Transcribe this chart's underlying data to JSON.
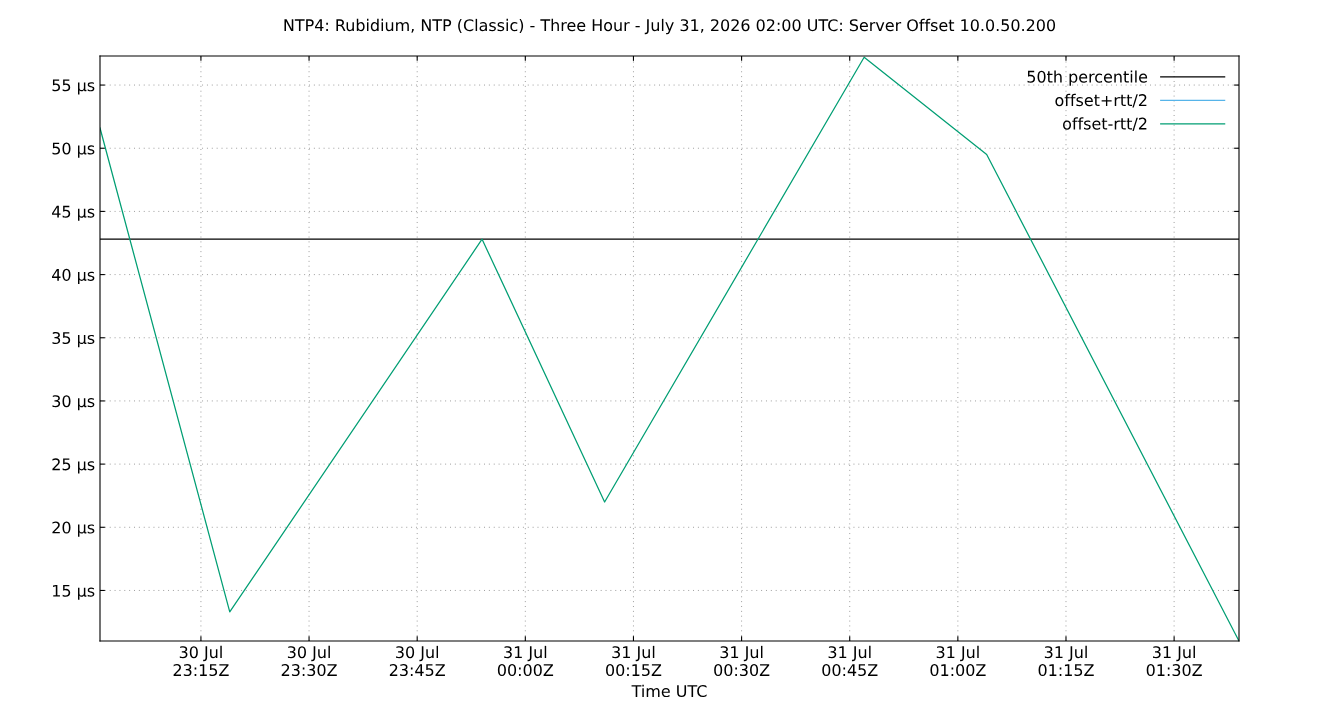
{
  "chart_data": {
    "type": "line",
    "title": "NTP4: Rubidium, NTP (Classic) - Three Hour - July 31, 2026 02:00 UTC: Server Offset 10.0.50.200",
    "xlabel": "Time UTC",
    "x": [
      "2026-07-30T23:01",
      "2026-07-30T23:19",
      "2026-07-30T23:54",
      "2026-07-31T00:11",
      "2026-07-31T00:47",
      "2026-07-31T01:04",
      "2026-07-31T01:39"
    ],
    "series": [
      {
        "name": "50th percentile",
        "color": "#000000",
        "x": [
          "2026-07-30T23:01",
          "2026-07-31T01:39"
        ],
        "values": [
          42.8,
          42.8
        ]
      },
      {
        "name": "offset+rtt/2",
        "color": "#56b4e9",
        "values": [
          null,
          null,
          null,
          null,
          null,
          null,
          null
        ]
      },
      {
        "name": "offset-rtt/2",
        "color": "#009e73",
        "values": [
          51.6,
          13.3,
          42.8,
          22.0,
          57.2,
          49.5,
          11.0
        ]
      }
    ],
    "xlim": [
      "2026-07-30T23:01",
      "2026-07-31T01:39"
    ],
    "xticks": [
      {
        "value": "2026-07-30T23:15",
        "label": "30 Jul\n23:15Z"
      },
      {
        "value": "2026-07-30T23:30",
        "label": "30 Jul\n23:30Z"
      },
      {
        "value": "2026-07-30T23:45",
        "label": "30 Jul\n23:45Z"
      },
      {
        "value": "2026-07-31T00:00",
        "label": "31 Jul\n00:00Z"
      },
      {
        "value": "2026-07-31T00:15",
        "label": "31 Jul\n00:15Z"
      },
      {
        "value": "2026-07-31T00:30",
        "label": "31 Jul\n00:30Z"
      },
      {
        "value": "2026-07-31T00:45",
        "label": "31 Jul\n00:45Z"
      },
      {
        "value": "2026-07-31T01:00",
        "label": "31 Jul\n01:00Z"
      },
      {
        "value": "2026-07-31T01:15",
        "label": "31 Jul\n01:15Z"
      },
      {
        "value": "2026-07-31T01:30",
        "label": "31 Jul\n01:30Z"
      }
    ],
    "ylim": [
      11.0,
      57.3
    ],
    "yticks": [
      {
        "value": 15,
        "label": "15 µs"
      },
      {
        "value": 20,
        "label": "20 µs"
      },
      {
        "value": 25,
        "label": "25 µs"
      },
      {
        "value": 30,
        "label": "30 µs"
      },
      {
        "value": 35,
        "label": "35 µs"
      },
      {
        "value": 40,
        "label": "40 µs"
      },
      {
        "value": 45,
        "label": "45 µs"
      },
      {
        "value": 50,
        "label": "50 µs"
      },
      {
        "value": 55,
        "label": "55 µs"
      }
    ],
    "grid": true,
    "legend": "top right",
    "line_style": "solid"
  }
}
